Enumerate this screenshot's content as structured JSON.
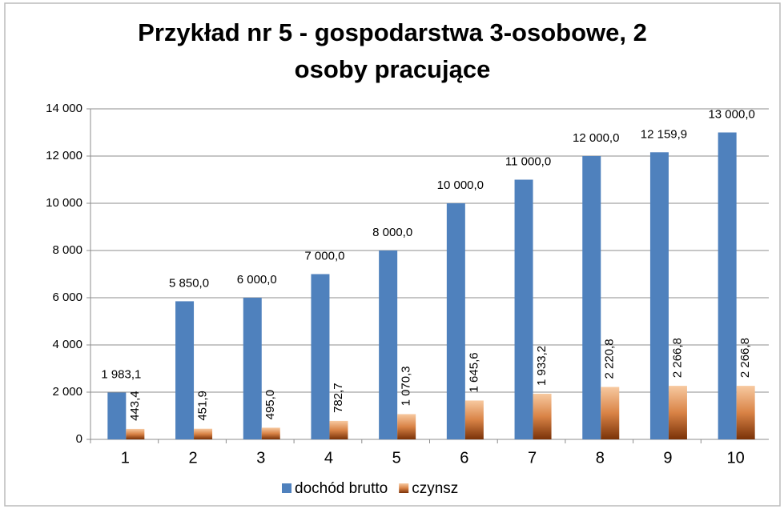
{
  "chart_data": {
    "type": "bar",
    "title": "Przykład nr 5 - gospodarstwa 3-osobowe, 2 osoby pracujące",
    "categories": [
      "1",
      "2",
      "3",
      "4",
      "5",
      "6",
      "7",
      "8",
      "9",
      "10"
    ],
    "series": [
      {
        "name": "dochód brutto",
        "color": "#4f81bd",
        "values": [
          1983.1,
          5850.0,
          6000.0,
          7000.0,
          8000.0,
          10000.0,
          11000.0,
          12000.0,
          12159.9,
          13000.0
        ],
        "value_labels": [
          "1 983,1",
          "5 850,0",
          "6 000,0",
          "7 000,0",
          "8 000,0",
          "10 000,0",
          "11 000,0",
          "12 000,0",
          "12 159,9",
          "13 000,0"
        ]
      },
      {
        "name": "czynsz",
        "color": "#c0622a",
        "values": [
          443.4,
          451.9,
          495.0,
          782.7,
          1070.3,
          1645.6,
          1933.2,
          2220.8,
          2266.8,
          2266.8
        ],
        "value_labels": [
          "443,4",
          "451,9",
          "495,0",
          "782,7",
          "1 070,3",
          "1 645,6",
          "1 933,2",
          "2 220,8",
          "2 266,8",
          "2 266,8"
        ]
      }
    ],
    "ylim": [
      0,
      14000
    ],
    "yticks": [
      0,
      {
        "value": 2000,
        "label": "2 000"
      },
      {
        "value": 4000,
        "label": "4 000"
      },
      {
        "value": 6000,
        "label": "6 000"
      },
      {
        "value": 8000,
        "label": "8 000"
      },
      {
        "value": 10000,
        "label": "10 000"
      },
      {
        "value": 12000,
        "label": "12 000"
      },
      {
        "value": 14000,
        "label": "14 000"
      }
    ],
    "grid": true,
    "legend": "bottom"
  }
}
